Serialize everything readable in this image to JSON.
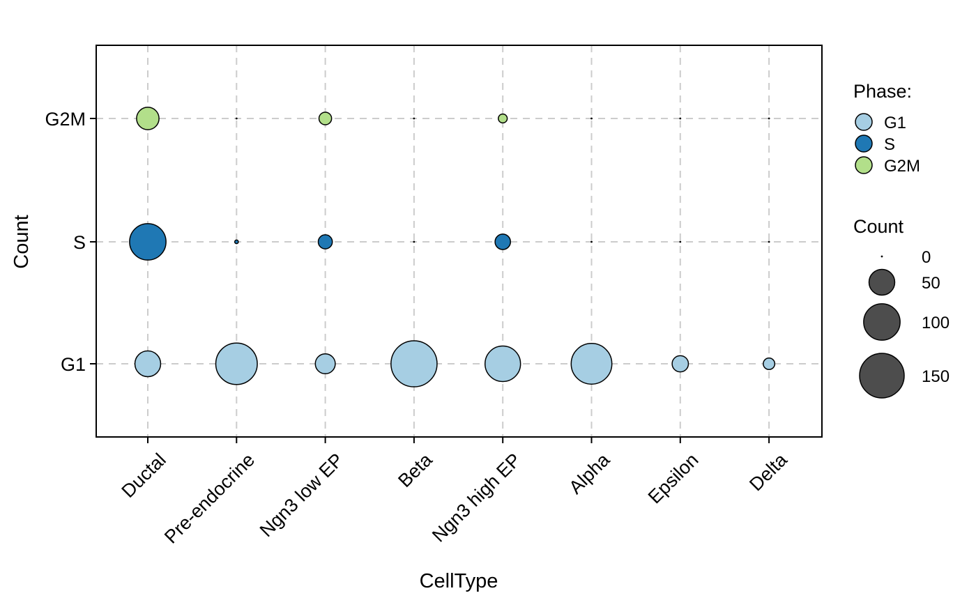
{
  "chart_data": {
    "type": "scatter",
    "subtype": "bubble",
    "xlabel": "CellType",
    "ylabel": "Count",
    "categories": [
      "Ductal",
      "Pre-endocrine",
      "Ngn3 low EP",
      "Beta",
      "Ngn3 high EP",
      "Alpha",
      "Epsilon",
      "Delta"
    ],
    "y_categories": [
      "G1",
      "S",
      "G2M"
    ],
    "grid": true,
    "size_scale_max": 150,
    "series": [
      {
        "name": "G1",
        "color": "#A6CEE3",
        "values": [
          50,
          130,
          30,
          160,
          95,
          125,
          20,
          10
        ]
      },
      {
        "name": "S",
        "color": "#1F78B4",
        "values": [
          100,
          1,
          15,
          0,
          18,
          0,
          0,
          0
        ]
      },
      {
        "name": "G2M",
        "color": "#B2DF8A",
        "values": [
          38,
          0,
          12,
          0,
          6,
          0,
          0,
          0
        ]
      }
    ],
    "legend": {
      "placement": "right",
      "phase_title": "Phase:",
      "size_title": "Count",
      "size_breaks": [
        0,
        50,
        100,
        150
      ],
      "size_labels": [
        "0",
        "50",
        "100",
        "150"
      ],
      "size_color": "#4D4D4D"
    }
  }
}
